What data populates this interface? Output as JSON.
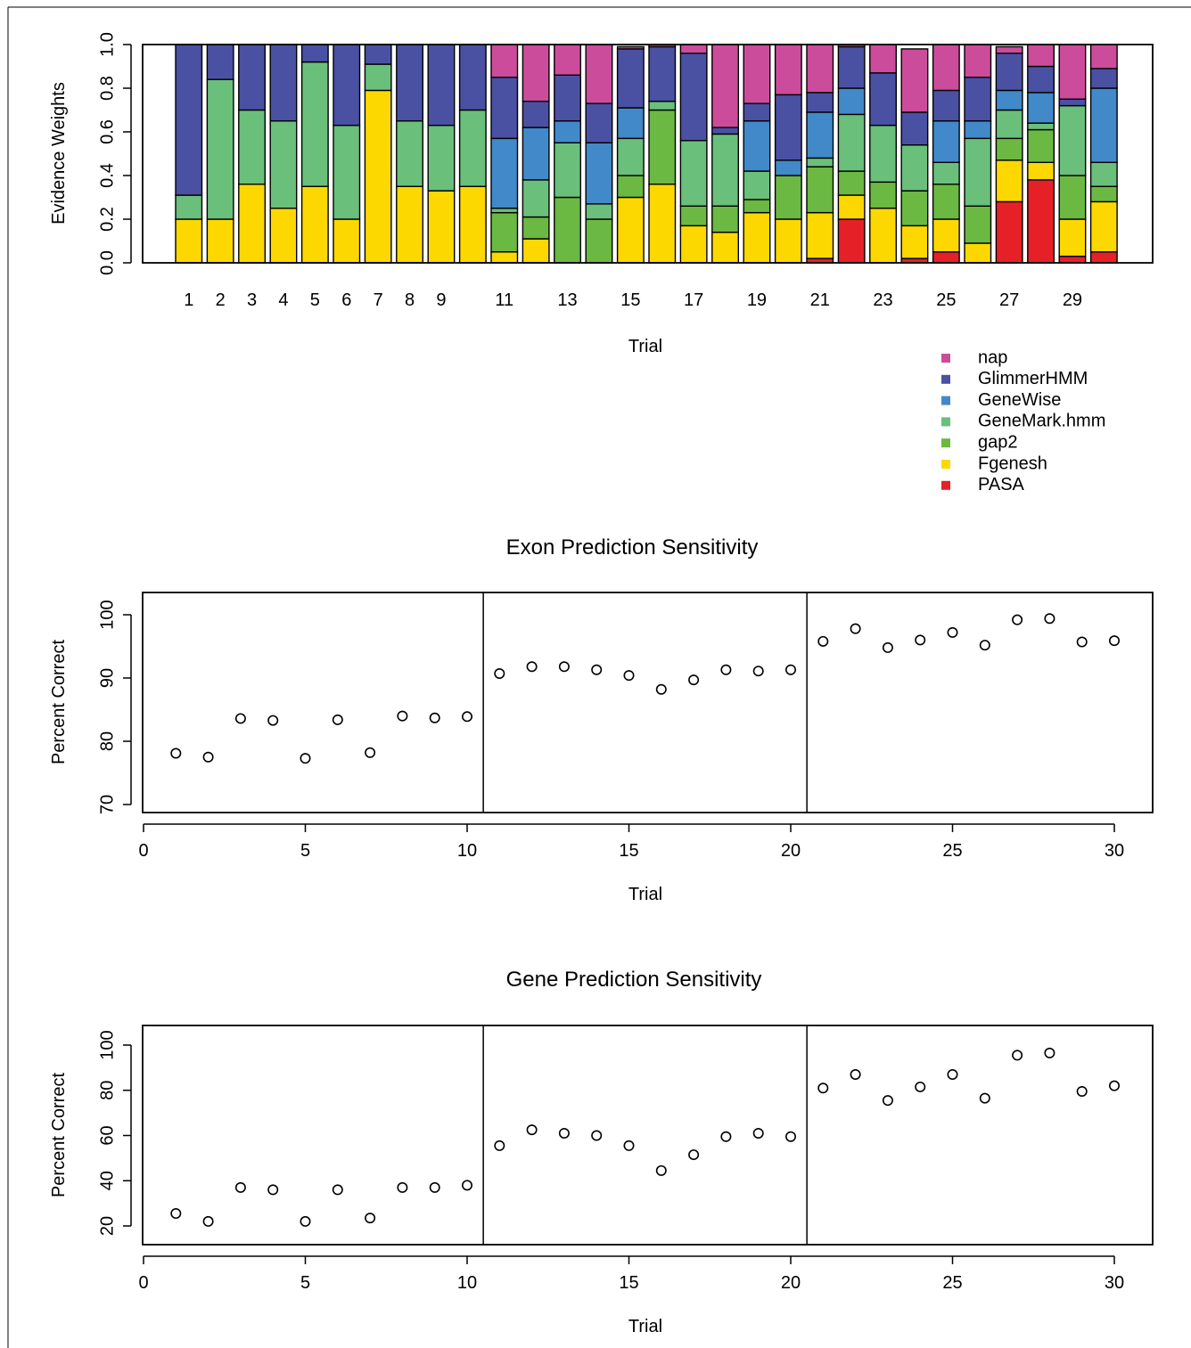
{
  "colors": {
    "nap": "#cc4c9c",
    "GlimmerHMM": "#4a51a3",
    "GeneWise": "#4189c8",
    "GeneMark.hmm": "#6abf7b",
    "gap2": "#6bb843",
    "Fgenesh": "#fcd800",
    "PASA": "#e52127"
  },
  "chart_data": [
    {
      "type": "bar",
      "stacked": true,
      "title": "",
      "xlabel": "Trial",
      "ylabel": "Evidence Weights",
      "ylim": [
        0,
        1
      ],
      "yticks": [
        "0.0",
        "0.2",
        "0.4",
        "0.6",
        "0.8",
        "1.0"
      ],
      "xtick_labels": [
        "1",
        "2",
        "3",
        "4",
        "5",
        "6",
        "7",
        "8",
        "9",
        "",
        "11",
        "",
        "13",
        "",
        "15",
        "",
        "17",
        "",
        "19",
        "",
        "21",
        "",
        "23",
        "",
        "25",
        "",
        "27",
        "",
        "29",
        ""
      ],
      "legend_position": "bottom-right, below plot",
      "categories": [
        "1",
        "2",
        "3",
        "4",
        "5",
        "6",
        "7",
        "8",
        "9",
        "10",
        "11",
        "12",
        "13",
        "14",
        "15",
        "16",
        "17",
        "18",
        "19",
        "20",
        "21",
        "22",
        "23",
        "24",
        "25",
        "26",
        "27",
        "28",
        "29",
        "30"
      ],
      "series": [
        {
          "name": "PASA",
          "values": [
            0,
            0,
            0,
            0,
            0,
            0,
            0,
            0,
            0,
            0,
            0,
            0,
            0,
            0,
            0,
            0,
            0,
            0,
            0,
            0,
            0.02,
            0.2,
            0,
            0.02,
            0.05,
            0,
            0.28,
            0.38,
            0.03,
            0.05
          ]
        },
        {
          "name": "Fgenesh",
          "values": [
            0.2,
            0.2,
            0.36,
            0.25,
            0.35,
            0.2,
            0.79,
            0.35,
            0.33,
            0.35,
            0.05,
            0.11,
            0,
            0,
            0.3,
            0.36,
            0.17,
            0.14,
            0.23,
            0.2,
            0.21,
            0.11,
            0.25,
            0.15,
            0.15,
            0.09,
            0.19,
            0.08,
            0.17,
            0.23
          ]
        },
        {
          "name": "gap2",
          "values": [
            0,
            0,
            0,
            0,
            0,
            0,
            0,
            0,
            0,
            0,
            0.18,
            0.1,
            0.3,
            0.2,
            0.1,
            0.34,
            0.09,
            0.12,
            0.06,
            0.2,
            0.21,
            0.11,
            0.12,
            0.16,
            0.16,
            0.17,
            0.1,
            0.15,
            0.2,
            0.07
          ]
        },
        {
          "name": "GeneMark.hmm",
          "values": [
            0.11,
            0.64,
            0.34,
            0.4,
            0.57,
            0.43,
            0.12,
            0.3,
            0.3,
            0.35,
            0.02,
            0.17,
            0.25,
            0.07,
            0.17,
            0.04,
            0.3,
            0.33,
            0.13,
            0,
            0.04,
            0.26,
            0.26,
            0.21,
            0.1,
            0.31,
            0.13,
            0.03,
            0.32,
            0.11
          ]
        },
        {
          "name": "GeneWise",
          "values": [
            0,
            0,
            0,
            0,
            0,
            0,
            0,
            0,
            0,
            0,
            0.32,
            0.24,
            0.1,
            0.28,
            0.14,
            0,
            0,
            0,
            0.23,
            0.07,
            0.21,
            0.12,
            0,
            0,
            0.19,
            0.08,
            0.09,
            0.14,
            0,
            0.34
          ]
        },
        {
          "name": "GlimmerHMM",
          "values": [
            0.69,
            0.16,
            0.3,
            0.35,
            0.08,
            0.37,
            0.09,
            0.35,
            0.37,
            0.3,
            0.28,
            0.12,
            0.21,
            0.18,
            0.27,
            0.25,
            0.4,
            0.03,
            0.08,
            0.3,
            0.09,
            0.19,
            0.24,
            0.15,
            0.14,
            0.2,
            0.17,
            0.12,
            0.03,
            0.09
          ]
        },
        {
          "name": "nap",
          "values": [
            0,
            0,
            0,
            0,
            0,
            0,
            0,
            0,
            0,
            0,
            0.15,
            0.26,
            0.14,
            0.27,
            0.01,
            0.01,
            0.04,
            0.38,
            0.27,
            0.23,
            0.22,
            0.01,
            0.13,
            0.29,
            0.21,
            0.15,
            0.03,
            0.1,
            0.25,
            0.11
          ]
        }
      ]
    },
    {
      "type": "scatter",
      "title": "Exon Prediction Sensitivity",
      "xlabel": "Trial",
      "ylabel": "Percent Correct",
      "xlim": [
        0,
        30
      ],
      "ylim": [
        70,
        100
      ],
      "xticks": [
        0,
        5,
        10,
        15,
        20,
        25,
        30
      ],
      "yticks": [
        70,
        80,
        90,
        100
      ],
      "vlines": [
        10.5,
        20.5
      ],
      "x": [
        1,
        2,
        3,
        4,
        5,
        6,
        7,
        8,
        9,
        10,
        11,
        12,
        13,
        14,
        15,
        16,
        17,
        18,
        19,
        20,
        21,
        22,
        23,
        24,
        25,
        26,
        27,
        28,
        29,
        30
      ],
      "y": [
        78.1,
        77.5,
        83.6,
        83.3,
        77.3,
        83.4,
        78.2,
        84.0,
        83.7,
        83.9,
        90.7,
        91.8,
        91.8,
        91.3,
        90.4,
        88.2,
        89.7,
        91.3,
        91.1,
        91.3,
        95.8,
        97.8,
        94.8,
        96.0,
        97.2,
        95.2,
        99.2,
        99.4,
        95.7,
        95.9
      ]
    },
    {
      "type": "scatter",
      "title": "Gene Prediction Sensitivity",
      "xlabel": "Trial",
      "ylabel": "Percent Correct",
      "xlim": [
        0,
        30
      ],
      "ylim": [
        20,
        100
      ],
      "xticks": [
        0,
        5,
        10,
        15,
        20,
        25,
        30
      ],
      "yticks": [
        20,
        40,
        60,
        80,
        100
      ],
      "vlines": [
        10.5,
        20.5
      ],
      "x": [
        1,
        2,
        3,
        4,
        5,
        6,
        7,
        8,
        9,
        10,
        11,
        12,
        13,
        14,
        15,
        16,
        17,
        18,
        19,
        20,
        21,
        22,
        23,
        24,
        25,
        26,
        27,
        28,
        29,
        30
      ],
      "y": [
        25.5,
        22,
        37,
        36,
        22,
        36,
        23.5,
        37,
        37,
        38,
        55.5,
        62.5,
        61,
        60,
        55.5,
        44.5,
        51.5,
        59.5,
        61,
        59.5,
        81,
        87,
        75.5,
        81.5,
        87,
        76.5,
        95.5,
        96.5,
        79.5,
        82
      ]
    }
  ]
}
